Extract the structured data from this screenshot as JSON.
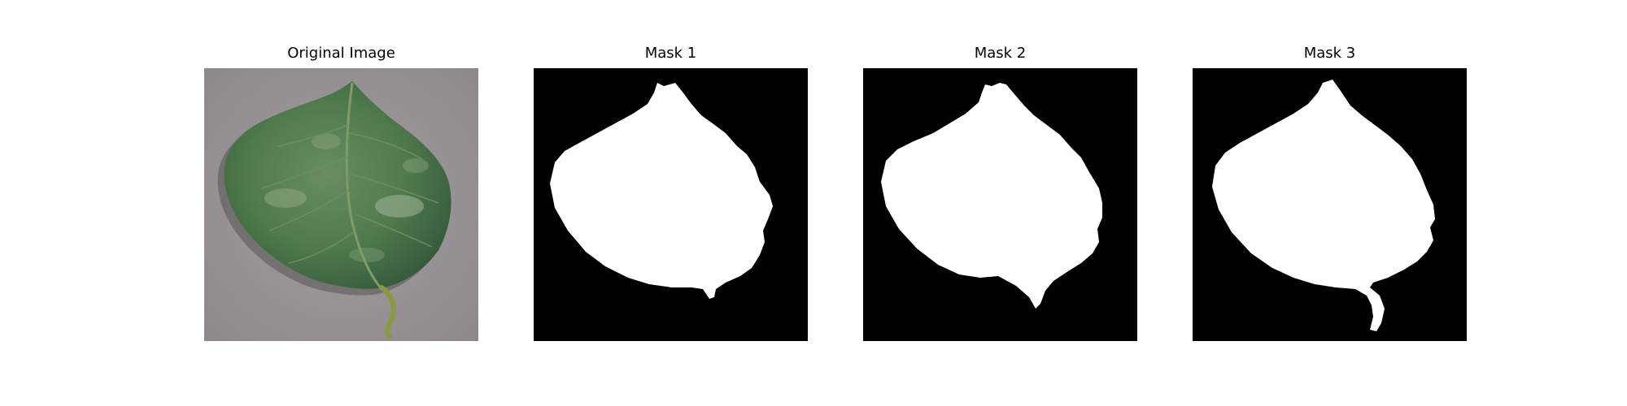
{
  "figure": {
    "panels": [
      {
        "title": "Original Image"
      },
      {
        "title": "Mask 1"
      },
      {
        "title": "Mask 2"
      },
      {
        "title": "Mask 3"
      }
    ]
  },
  "colors": {
    "mask_background": "#000000",
    "mask_foreground": "#ffffff",
    "photo_background": "#9b9598",
    "leaf_green": "#4d7a4a",
    "leaf_dark": "#2f5532",
    "vein": "#7e9b6c",
    "stem": "#8a9a3e"
  }
}
